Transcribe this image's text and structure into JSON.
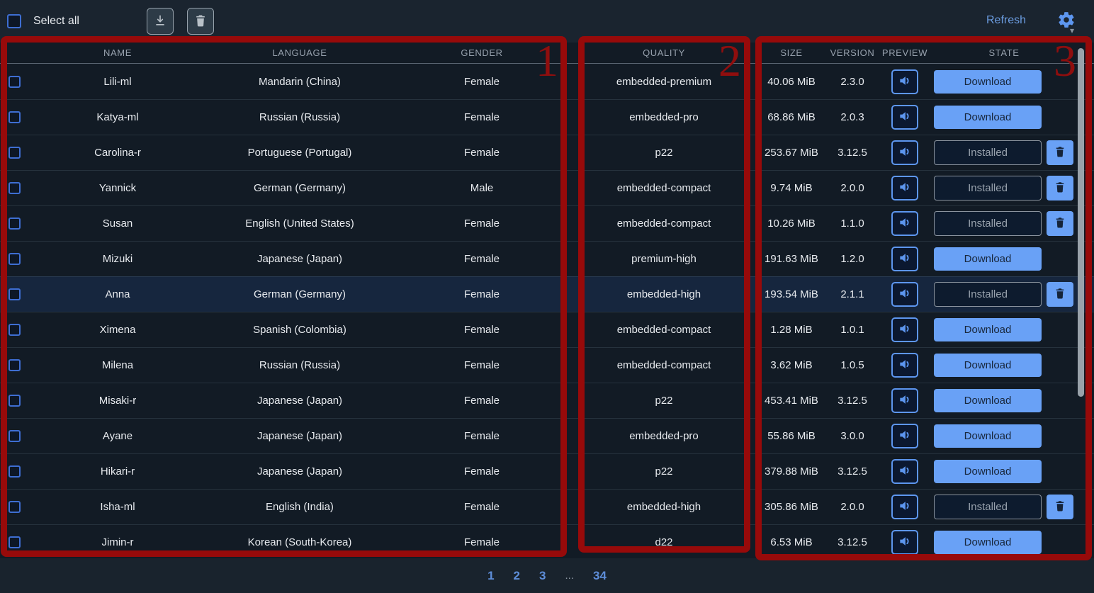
{
  "colors": {
    "accent_blue": "#69a1f6",
    "link_blue": "#6b9ce0",
    "checkbox_blue": "#3e6ed2",
    "annotation_red": "#970a0a",
    "highlight_row": "#16263e"
  },
  "topbar": {
    "select_all_label": "Select all",
    "refresh_label": "Refresh",
    "icons": [
      "download-icon",
      "trash-icon",
      "gear-icon",
      "chevron-down-icon"
    ]
  },
  "table": {
    "columns": [
      "NAME",
      "LANGUAGE",
      "GENDER",
      "QUALITY",
      "SIZE",
      "VERSION",
      "PREVIEW",
      "STATE"
    ],
    "download_label": "Download",
    "installed_label": "Installed",
    "preview_icon": "speaker-icon",
    "delete_icon": "trash-icon",
    "rows": [
      {
        "name": "Lili-ml",
        "language": "Mandarin (China)",
        "gender": "Female",
        "quality": "embedded-premium",
        "size": "40.06 MiB",
        "version": "2.3.0",
        "state": "download",
        "highlighted": false
      },
      {
        "name": "Katya-ml",
        "language": "Russian (Russia)",
        "gender": "Female",
        "quality": "embedded-pro",
        "size": "68.86 MiB",
        "version": "2.0.3",
        "state": "download",
        "highlighted": false
      },
      {
        "name": "Carolina-r",
        "language": "Portuguese (Portugal)",
        "gender": "Female",
        "quality": "p22",
        "size": "253.67 MiB",
        "version": "3.12.5",
        "state": "installed",
        "highlighted": false
      },
      {
        "name": "Yannick",
        "language": "German (Germany)",
        "gender": "Male",
        "quality": "embedded-compact",
        "size": "9.74 MiB",
        "version": "2.0.0",
        "state": "installed",
        "highlighted": false
      },
      {
        "name": "Susan",
        "language": "English (United States)",
        "gender": "Female",
        "quality": "embedded-compact",
        "size": "10.26 MiB",
        "version": "1.1.0",
        "state": "installed",
        "highlighted": false
      },
      {
        "name": "Mizuki",
        "language": "Japanese (Japan)",
        "gender": "Female",
        "quality": "premium-high",
        "size": "191.63 MiB",
        "version": "1.2.0",
        "state": "download",
        "highlighted": false
      },
      {
        "name": "Anna",
        "language": "German (Germany)",
        "gender": "Female",
        "quality": "embedded-high",
        "size": "193.54 MiB",
        "version": "2.1.1",
        "state": "installed",
        "highlighted": true
      },
      {
        "name": "Ximena",
        "language": "Spanish (Colombia)",
        "gender": "Female",
        "quality": "embedded-compact",
        "size": "1.28 MiB",
        "version": "1.0.1",
        "state": "download",
        "highlighted": false
      },
      {
        "name": "Milena",
        "language": "Russian (Russia)",
        "gender": "Female",
        "quality": "embedded-compact",
        "size": "3.62 MiB",
        "version": "1.0.5",
        "state": "download",
        "highlighted": false
      },
      {
        "name": "Misaki-r",
        "language": "Japanese (Japan)",
        "gender": "Female",
        "quality": "p22",
        "size": "453.41 MiB",
        "version": "3.12.5",
        "state": "download",
        "highlighted": false
      },
      {
        "name": "Ayane",
        "language": "Japanese (Japan)",
        "gender": "Female",
        "quality": "embedded-pro",
        "size": "55.86 MiB",
        "version": "3.0.0",
        "state": "download",
        "highlighted": false
      },
      {
        "name": "Hikari-r",
        "language": "Japanese (Japan)",
        "gender": "Female",
        "quality": "p22",
        "size": "379.88 MiB",
        "version": "3.12.5",
        "state": "download",
        "highlighted": false
      },
      {
        "name": "Isha-ml",
        "language": "English (India)",
        "gender": "Female",
        "quality": "embedded-high",
        "size": "305.86 MiB",
        "version": "2.0.0",
        "state": "installed",
        "highlighted": false
      },
      {
        "name": "Jimin-r",
        "language": "Korean (South-Korea)",
        "gender": "Female",
        "quality": "d22",
        "size": "6.53 MiB",
        "version": "3.12.5",
        "state": "download",
        "highlighted": false
      }
    ]
  },
  "pagination": {
    "items": [
      {
        "label": "1",
        "type": "page"
      },
      {
        "label": "2",
        "type": "page"
      },
      {
        "label": "3",
        "type": "page"
      },
      {
        "label": "...",
        "type": "ellipsis"
      },
      {
        "label": "34",
        "type": "page"
      }
    ]
  },
  "annotations": [
    {
      "label": "1"
    },
    {
      "label": "2"
    },
    {
      "label": "3"
    }
  ]
}
